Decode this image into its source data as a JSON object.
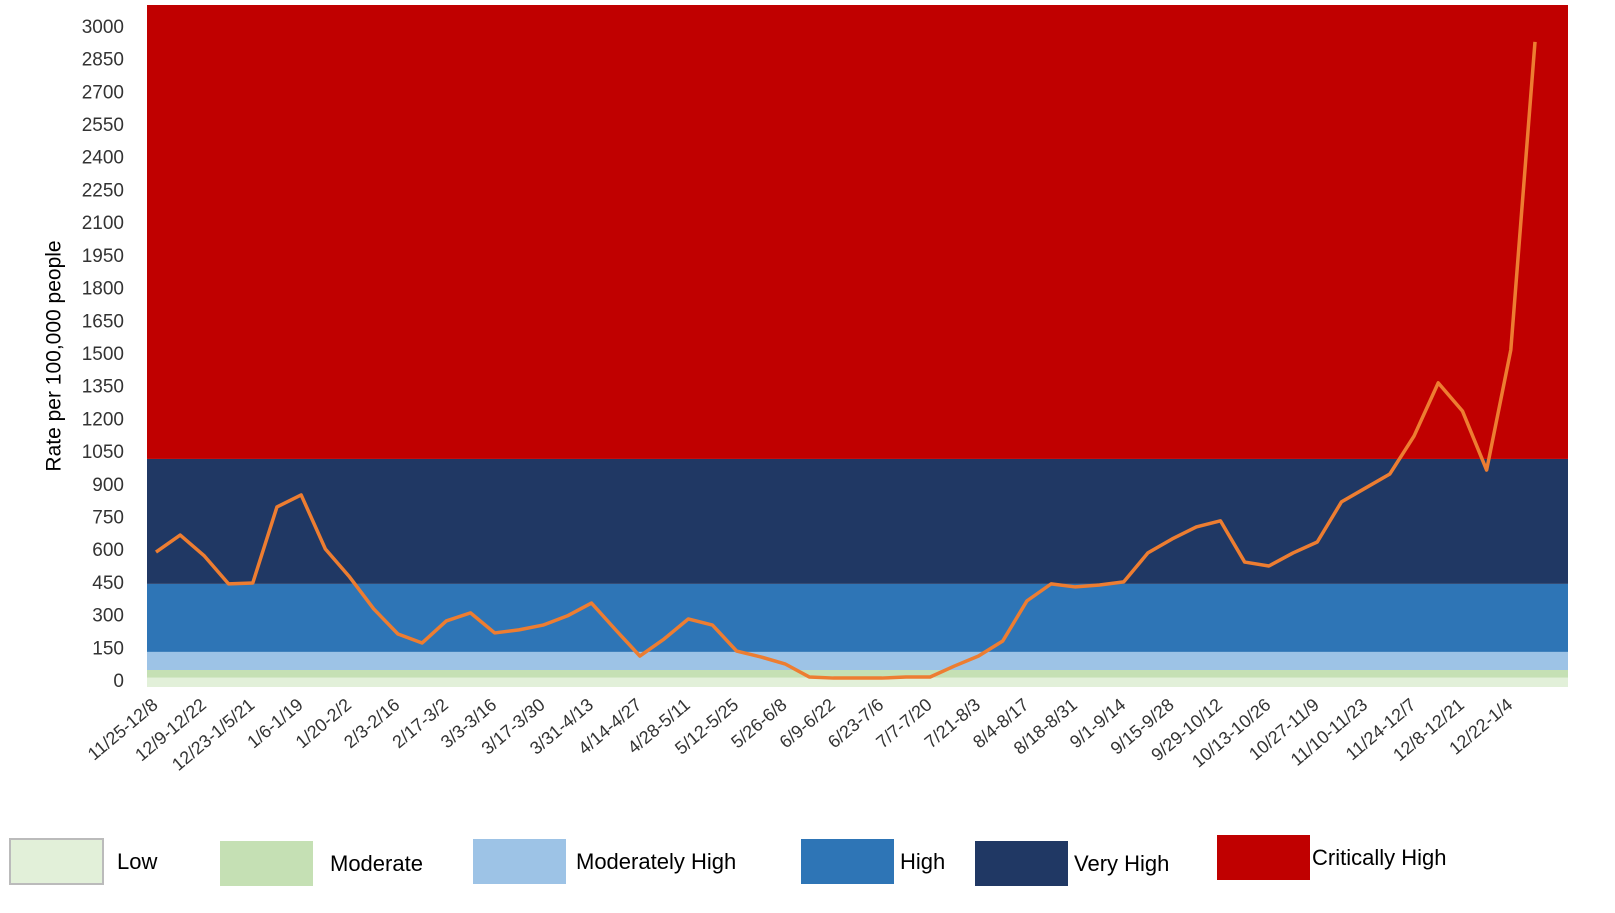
{
  "chart_data": {
    "type": "line",
    "y_label": "Rate per 100,000 people",
    "categories": [
      "11/25-12/8",
      null,
      "12/9-12/22",
      null,
      "12/23-1/5/21",
      null,
      "1/6-1/19",
      null,
      "1/20-2/2",
      null,
      "2/3-2/16",
      null,
      "2/17-3/2",
      null,
      "3/3-3/16",
      null,
      "3/17-3/30",
      null,
      "3/31-4/13",
      null,
      "4/14-4/27",
      null,
      "4/28-5/11",
      null,
      "5/12-5/25",
      null,
      "5/26-6/8",
      null,
      "6/9-6/22",
      null,
      "6/23-7/6",
      null,
      "7/7-7/20",
      null,
      "7/21-8/3",
      null,
      "8/4-8/17",
      null,
      "8/18-8/31",
      null,
      "9/1-9/14",
      null,
      "9/15-9/28",
      null,
      "9/29-10/12",
      null,
      "10/13-10/26",
      null,
      "10/27-11/9",
      null,
      "11/10-11/23",
      null,
      "11/24-12/7",
      null,
      "12/8-12/21",
      null,
      "12/22-1/4",
      null
    ],
    "series": [
      {
        "color": "#ED7D31",
        "values": [
          596,
          674,
          578,
          450,
          454,
          803,
          858,
          610,
          482,
          335,
          220,
          179,
          280,
          317,
          225,
          239,
          261,
          303,
          362,
          239,
          119,
          197,
          289,
          261,
          142,
          115,
          83,
          23,
          18,
          18,
          18,
          23,
          23,
          73,
          119,
          188,
          372,
          450,
          436,
          445,
          459,
          592,
          656,
          711,
          739,
          550,
          532,
          592,
          642,
          826,
          890,
          954,
          1128,
          1372,
          1243,
          972,
          1523,
          2936
        ]
      }
    ],
    "bands": [
      {
        "name": "Low",
        "color": "#E2F0D9",
        "from": -23,
        "to": 20
      },
      {
        "name": "Moderate",
        "color": "#C5E0B4",
        "from": 20,
        "to": 55
      },
      {
        "name": "Moderately High",
        "color": "#9DC3E6",
        "from": 55,
        "to": 138
      },
      {
        "name": "High",
        "color": "#2E75B6",
        "from": 138,
        "to": 450
      },
      {
        "name": "Very High",
        "color": "#203864",
        "from": 450,
        "to": 1023
      },
      {
        "name": "Critically High",
        "color": "#C00000",
        "from": 1023,
        "to": 3105
      }
    ],
    "ylim": [
      -23,
      3105
    ],
    "yticks": [
      0,
      150,
      300,
      450,
      600,
      750,
      900,
      1050,
      1200,
      1350,
      1500,
      1650,
      1800,
      1950,
      2100,
      2250,
      2400,
      2550,
      2700,
      2850,
      3000
    ]
  }
}
